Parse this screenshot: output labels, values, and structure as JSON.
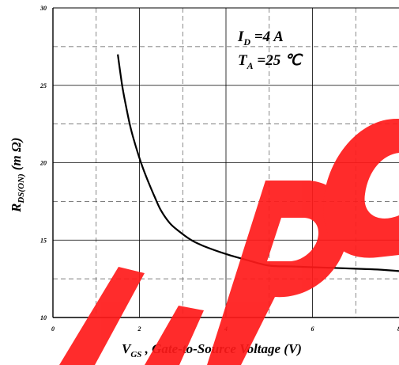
{
  "chart_data": {
    "type": "line",
    "x_ticks": [
      "0",
      "2",
      "4",
      "6",
      "8"
    ],
    "y_ticks": [
      "10",
      "15",
      "20",
      "25",
      "30"
    ],
    "xlim": [
      0,
      8
    ],
    "ylim": [
      10,
      30
    ],
    "grid": true,
    "series": [
      {
        "x": [
          1.5,
          1.6,
          1.7,
          1.8,
          1.9,
          2.0,
          2.1,
          2.2,
          2.35,
          2.5,
          2.7,
          2.9,
          3.2,
          3.5,
          4.0,
          4.5,
          5.0,
          5.5,
          6.0,
          6.5,
          7.0,
          7.5,
          8.0
        ],
        "y": [
          27.0,
          25.0,
          23.5,
          22.2,
          21.2,
          20.3,
          19.5,
          18.8,
          17.8,
          16.9,
          16.1,
          15.6,
          15.0,
          14.6,
          14.1,
          13.7,
          13.35,
          13.3,
          13.25,
          13.2,
          13.15,
          13.1,
          13.0
        ]
      }
    ],
    "ylabel": {
      "main": "R",
      "sub": "DS(ON)",
      "unit": " (m Ω)"
    },
    "xlabel": {
      "main": "V",
      "sub": "GS",
      "rest": " , Gate-to-Source Voltage (V)"
    },
    "annotations": {
      "id_main": "I",
      "id_sub": "D",
      "id_rest": " =4 A",
      "ta_main": "T",
      "ta_sub": "A",
      "ta_rest": " =25 ℃"
    }
  },
  "colors": {
    "watermark": "#ff1a1a",
    "curve": "#000000",
    "grid_dashed": "#555555",
    "grid_solid": "#000000"
  }
}
